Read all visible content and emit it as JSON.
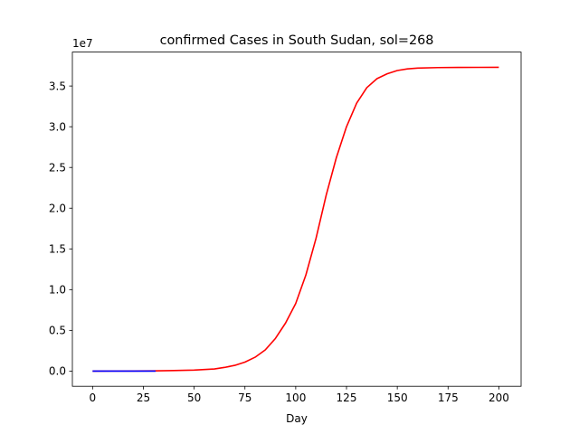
{
  "chart_data": {
    "type": "line",
    "title": "confirmed Cases in South Sudan, sol=268",
    "xlabel": "Day",
    "ylabel": "",
    "y_offset_label": "1e7",
    "xlim": [
      -9.95,
      210.95
    ],
    "ylim": [
      -1865000,
      39165000
    ],
    "xticks": [
      0,
      25,
      50,
      75,
      100,
      125,
      150,
      175,
      200
    ],
    "xtick_labels": [
      "0",
      "25",
      "50",
      "75",
      "100",
      "125",
      "150",
      "175",
      "200"
    ],
    "yticks": [
      0,
      5000000,
      10000000,
      15000000,
      20000000,
      25000000,
      30000000,
      35000000
    ],
    "ytick_labels": [
      "0.0",
      "0.5",
      "1.0",
      "1.5",
      "2.0",
      "2.5",
      "3.0",
      "3.5"
    ],
    "grid": false,
    "series": [
      {
        "color": "#ff0000",
        "x": [
          0,
          10,
          20,
          30,
          40,
          50,
          60,
          65,
          70,
          75,
          80,
          85,
          90,
          95,
          100,
          105,
          110,
          115,
          120,
          125,
          130,
          135,
          140,
          145,
          150,
          155,
          160,
          170,
          180,
          190,
          200
        ],
        "y": [
          0,
          2000,
          8000,
          25000,
          60000,
          120000,
          260000,
          450000,
          700000,
          1100000,
          1700000,
          2600000,
          4000000,
          5900000,
          8300000,
          11800000,
          16300000,
          21600000,
          26200000,
          30000000,
          32900000,
          34800000,
          35900000,
          36500000,
          36900000,
          37100000,
          37200000,
          37260000,
          37280000,
          37290000,
          37300000
        ]
      },
      {
        "color": "#0000ff",
        "x": [
          0,
          5,
          10,
          15,
          20,
          25,
          31
        ],
        "y": [
          0,
          0,
          0,
          0,
          0,
          0,
          0
        ]
      }
    ]
  }
}
